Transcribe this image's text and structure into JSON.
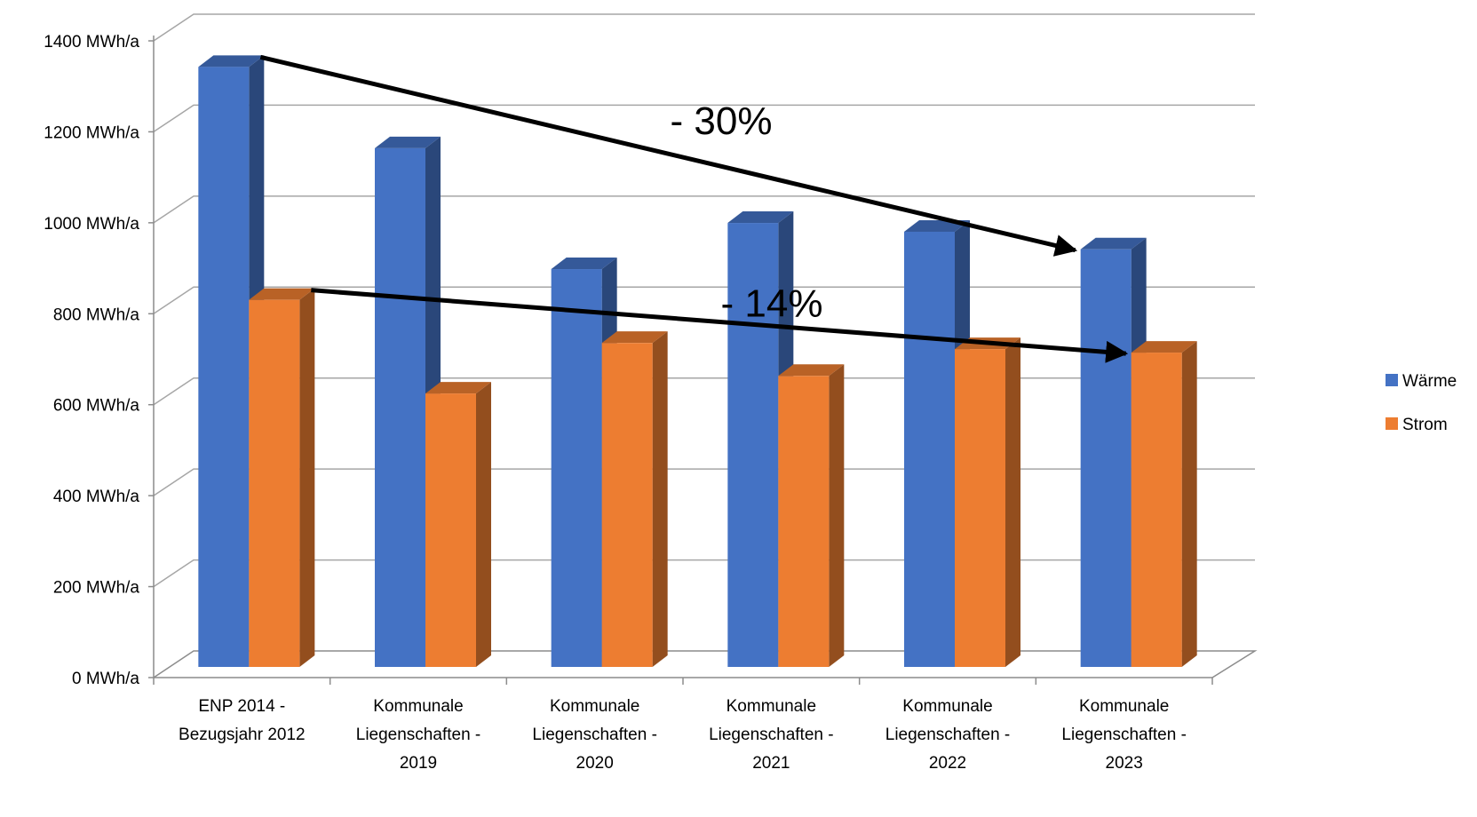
{
  "chart_data": {
    "type": "bar",
    "style": "3d-clustered-column",
    "categories": [
      [
        "ENP 2014 -",
        "Bezugsjahr 2012"
      ],
      [
        "Kommunale",
        "Liegenschaften -",
        "2019"
      ],
      [
        "Kommunale",
        "Liegenschaften -",
        "2020"
      ],
      [
        "Kommunale",
        "Liegenschaften -",
        "2021"
      ],
      [
        "Kommunale",
        "Liegenschaften -",
        "2022"
      ],
      [
        "Kommunale",
        "Liegenschaften -",
        "2023"
      ]
    ],
    "series": [
      {
        "name": "Wärme",
        "color": "#4472C4",
        "values": [
          1365,
          1180,
          905,
          1010,
          990,
          950
        ]
      },
      {
        "name": "Strom",
        "color": "#ED7D31",
        "values": [
          835,
          622,
          737,
          662,
          723,
          715
        ]
      }
    ],
    "ylim": [
      0,
      1400
    ],
    "yticks": [
      {
        "value": 0,
        "label": "0 MWh/a"
      },
      {
        "value": 200,
        "label": "200 MWh/a"
      },
      {
        "value": 400,
        "label": "400 MWh/a"
      },
      {
        "value": 600,
        "label": "600 MWh/a"
      },
      {
        "value": 800,
        "label": "800 MWh/a"
      },
      {
        "value": 1000,
        "label": "1000 MWh/a"
      },
      {
        "value": 1200,
        "label": "1200 MWh/a"
      },
      {
        "value": 1400,
        "label": "1400 MWh/a"
      }
    ],
    "grid": true,
    "legend_position": "right",
    "annotations": [
      {
        "text": "- 30%",
        "series": "Wärme",
        "from_category": 0,
        "to_category": 5
      },
      {
        "text": "- 14%",
        "series": "Strom",
        "from_category": 0,
        "to_category": 5
      }
    ]
  }
}
